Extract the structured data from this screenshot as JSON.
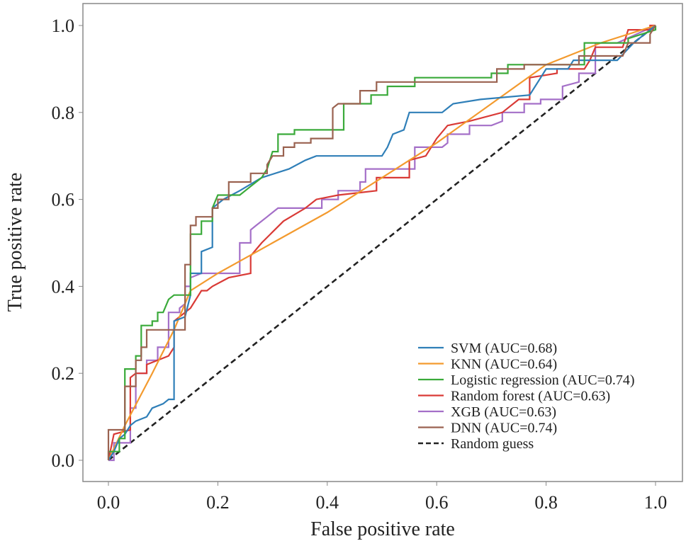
{
  "chart_data": {
    "type": "line",
    "title": "",
    "xlabel": "False positive rate",
    "ylabel": "True positive rate",
    "xlim": [
      0,
      1
    ],
    "ylim": [
      0,
      1
    ],
    "xticks": [
      "0.0",
      "0.2",
      "0.4",
      "0.6",
      "0.8",
      "1.0"
    ],
    "yticks": [
      "0.0",
      "0.2",
      "0.4",
      "0.6",
      "0.8",
      "1.0"
    ],
    "grid": false,
    "legend_position": "bottom-right",
    "series": [
      {
        "name": "SVM (AUC=0.68)",
        "color": "#2f7fb8",
        "dashed": false,
        "points": [
          [
            0,
            0
          ],
          [
            0.01,
            0.02
          ],
          [
            0.02,
            0.05
          ],
          [
            0.03,
            0.06
          ],
          [
            0.04,
            0.08
          ],
          [
            0.05,
            0.09
          ],
          [
            0.07,
            0.1
          ],
          [
            0.08,
            0.12
          ],
          [
            0.1,
            0.13
          ],
          [
            0.11,
            0.14
          ],
          [
            0.12,
            0.14
          ],
          [
            0.12,
            0.32
          ],
          [
            0.14,
            0.33
          ],
          [
            0.15,
            0.38
          ],
          [
            0.15,
            0.43
          ],
          [
            0.17,
            0.43
          ],
          [
            0.17,
            0.48
          ],
          [
            0.19,
            0.49
          ],
          [
            0.19,
            0.58
          ],
          [
            0.21,
            0.6
          ],
          [
            0.24,
            0.62
          ],
          [
            0.28,
            0.65
          ],
          [
            0.33,
            0.67
          ],
          [
            0.36,
            0.69
          ],
          [
            0.38,
            0.7
          ],
          [
            0.5,
            0.7
          ],
          [
            0.51,
            0.72
          ],
          [
            0.52,
            0.75
          ],
          [
            0.54,
            0.76
          ],
          [
            0.55,
            0.8
          ],
          [
            0.61,
            0.8
          ],
          [
            0.63,
            0.82
          ],
          [
            0.68,
            0.83
          ],
          [
            0.77,
            0.84
          ],
          [
            0.79,
            0.88
          ],
          [
            0.8,
            0.9
          ],
          [
            0.84,
            0.9
          ],
          [
            0.85,
            0.92
          ],
          [
            0.93,
            0.92
          ],
          [
            0.96,
            0.96
          ],
          [
            1,
            1
          ]
        ]
      },
      {
        "name": "KNN (AUC=0.64)",
        "color": "#f39a2e",
        "dashed": false,
        "points": [
          [
            0,
            0
          ],
          [
            0.03,
            0.08
          ],
          [
            0.08,
            0.2
          ],
          [
            0.12,
            0.3
          ],
          [
            0.15,
            0.39
          ],
          [
            0.2,
            0.43
          ],
          [
            0.3,
            0.5
          ],
          [
            0.4,
            0.57
          ],
          [
            0.5,
            0.65
          ],
          [
            0.6,
            0.73
          ],
          [
            0.7,
            0.82
          ],
          [
            0.8,
            0.91
          ],
          [
            0.9,
            0.96
          ],
          [
            1,
            1
          ]
        ]
      },
      {
        "name": "Logistic regression (AUC=0.74)",
        "color": "#3aaa3a",
        "dashed": false,
        "points": [
          [
            0,
            0
          ],
          [
            0,
            0.02
          ],
          [
            0.02,
            0.02
          ],
          [
            0.02,
            0.05
          ],
          [
            0.03,
            0.05
          ],
          [
            0.03,
            0.21
          ],
          [
            0.05,
            0.21
          ],
          [
            0.05,
            0.24
          ],
          [
            0.06,
            0.24
          ],
          [
            0.06,
            0.31
          ],
          [
            0.08,
            0.31
          ],
          [
            0.08,
            0.32
          ],
          [
            0.09,
            0.32
          ],
          [
            0.09,
            0.34
          ],
          [
            0.1,
            0.34
          ],
          [
            0.11,
            0.37
          ],
          [
            0.12,
            0.38
          ],
          [
            0.15,
            0.38
          ],
          [
            0.15,
            0.52
          ],
          [
            0.17,
            0.52
          ],
          [
            0.17,
            0.55
          ],
          [
            0.19,
            0.55
          ],
          [
            0.19,
            0.58
          ],
          [
            0.2,
            0.61
          ],
          [
            0.24,
            0.61
          ],
          [
            0.26,
            0.63
          ],
          [
            0.28,
            0.65
          ],
          [
            0.29,
            0.67
          ],
          [
            0.3,
            0.71
          ],
          [
            0.31,
            0.71
          ],
          [
            0.31,
            0.75
          ],
          [
            0.34,
            0.75
          ],
          [
            0.34,
            0.76
          ],
          [
            0.43,
            0.76
          ],
          [
            0.43,
            0.82
          ],
          [
            0.48,
            0.82
          ],
          [
            0.48,
            0.84
          ],
          [
            0.51,
            0.84
          ],
          [
            0.51,
            0.86
          ],
          [
            0.56,
            0.86
          ],
          [
            0.56,
            0.88
          ],
          [
            0.7,
            0.88
          ],
          [
            0.7,
            0.89
          ],
          [
            0.73,
            0.89
          ],
          [
            0.73,
            0.91
          ],
          [
            0.87,
            0.91
          ],
          [
            0.87,
            0.96
          ],
          [
            0.95,
            0.96
          ],
          [
            0.95,
            0.97
          ],
          [
            1,
            0.99
          ],
          [
            1,
            1
          ]
        ]
      },
      {
        "name": "Random forest (AUC=0.63)",
        "color": "#d93a36",
        "dashed": false,
        "points": [
          [
            0,
            0
          ],
          [
            0.01,
            0.06
          ],
          [
            0.04,
            0.07
          ],
          [
            0.04,
            0.19
          ],
          [
            0.05,
            0.2
          ],
          [
            0.07,
            0.2
          ],
          [
            0.07,
            0.22
          ],
          [
            0.11,
            0.24
          ],
          [
            0.12,
            0.26
          ],
          [
            0.12,
            0.32
          ],
          [
            0.13,
            0.33
          ],
          [
            0.15,
            0.35
          ],
          [
            0.17,
            0.39
          ],
          [
            0.18,
            0.39
          ],
          [
            0.19,
            0.4
          ],
          [
            0.22,
            0.42
          ],
          [
            0.26,
            0.43
          ],
          [
            0.26,
            0.47
          ],
          [
            0.28,
            0.5
          ],
          [
            0.32,
            0.55
          ],
          [
            0.36,
            0.58
          ],
          [
            0.38,
            0.6
          ],
          [
            0.42,
            0.61
          ],
          [
            0.49,
            0.62
          ],
          [
            0.49,
            0.65
          ],
          [
            0.55,
            0.65
          ],
          [
            0.55,
            0.69
          ],
          [
            0.58,
            0.7
          ],
          [
            0.6,
            0.74
          ],
          [
            0.62,
            0.77
          ],
          [
            0.66,
            0.78
          ],
          [
            0.72,
            0.8
          ],
          [
            0.75,
            0.83
          ],
          [
            0.77,
            0.83
          ],
          [
            0.77,
            0.88
          ],
          [
            0.82,
            0.89
          ],
          [
            0.82,
            0.9
          ],
          [
            0.87,
            0.9
          ],
          [
            0.88,
            0.92
          ],
          [
            0.89,
            0.95
          ],
          [
            0.94,
            0.95
          ],
          [
            0.95,
            0.99
          ],
          [
            0.99,
            0.99
          ],
          [
            0.99,
            1
          ],
          [
            1,
            1
          ]
        ]
      },
      {
        "name": "XGB (AUC=0.63)",
        "color": "#a46fc8",
        "dashed": false,
        "points": [
          [
            0,
            0
          ],
          [
            0.01,
            0
          ],
          [
            0.01,
            0.04
          ],
          [
            0.04,
            0.04
          ],
          [
            0.04,
            0.12
          ],
          [
            0.05,
            0.12
          ],
          [
            0.05,
            0.2
          ],
          [
            0.07,
            0.2
          ],
          [
            0.07,
            0.23
          ],
          [
            0.09,
            0.23
          ],
          [
            0.09,
            0.26
          ],
          [
            0.11,
            0.26
          ],
          [
            0.11,
            0.34
          ],
          [
            0.13,
            0.34
          ],
          [
            0.13,
            0.35
          ],
          [
            0.14,
            0.36
          ],
          [
            0.14,
            0.4
          ],
          [
            0.15,
            0.4
          ],
          [
            0.15,
            0.42
          ],
          [
            0.17,
            0.43
          ],
          [
            0.24,
            0.43
          ],
          [
            0.24,
            0.5
          ],
          [
            0.26,
            0.5
          ],
          [
            0.26,
            0.53
          ],
          [
            0.27,
            0.54
          ],
          [
            0.28,
            0.55
          ],
          [
            0.29,
            0.56
          ],
          [
            0.3,
            0.57
          ],
          [
            0.31,
            0.58
          ],
          [
            0.39,
            0.58
          ],
          [
            0.39,
            0.6
          ],
          [
            0.42,
            0.6
          ],
          [
            0.42,
            0.62
          ],
          [
            0.46,
            0.62
          ],
          [
            0.46,
            0.64
          ],
          [
            0.47,
            0.64
          ],
          [
            0.47,
            0.67
          ],
          [
            0.56,
            0.67
          ],
          [
            0.56,
            0.72
          ],
          [
            0.61,
            0.72
          ],
          [
            0.62,
            0.73
          ],
          [
            0.62,
            0.75
          ],
          [
            0.66,
            0.75
          ],
          [
            0.66,
            0.77
          ],
          [
            0.7,
            0.77
          ],
          [
            0.72,
            0.78
          ],
          [
            0.72,
            0.8
          ],
          [
            0.76,
            0.8
          ],
          [
            0.76,
            0.82
          ],
          [
            0.79,
            0.82
          ],
          [
            0.79,
            0.83
          ],
          [
            0.83,
            0.83
          ],
          [
            0.83,
            0.86
          ],
          [
            0.86,
            0.87
          ],
          [
            0.86,
            0.89
          ],
          [
            0.89,
            0.89
          ],
          [
            0.89,
            0.96
          ],
          [
            0.93,
            0.96
          ],
          [
            1,
            1
          ]
        ]
      },
      {
        "name": "DNN (AUC=0.74)",
        "color": "#9a6250",
        "dashed": false,
        "points": [
          [
            0,
            0
          ],
          [
            0,
            0.07
          ],
          [
            0.03,
            0.07
          ],
          [
            0.03,
            0.17
          ],
          [
            0.05,
            0.17
          ],
          [
            0.05,
            0.23
          ],
          [
            0.06,
            0.23
          ],
          [
            0.06,
            0.26
          ],
          [
            0.07,
            0.26
          ],
          [
            0.07,
            0.3
          ],
          [
            0.14,
            0.3
          ],
          [
            0.14,
            0.45
          ],
          [
            0.15,
            0.45
          ],
          [
            0.15,
            0.54
          ],
          [
            0.16,
            0.54
          ],
          [
            0.16,
            0.56
          ],
          [
            0.19,
            0.56
          ],
          [
            0.19,
            0.58
          ],
          [
            0.2,
            0.58
          ],
          [
            0.2,
            0.6
          ],
          [
            0.22,
            0.6
          ],
          [
            0.22,
            0.64
          ],
          [
            0.26,
            0.64
          ],
          [
            0.26,
            0.66
          ],
          [
            0.29,
            0.66
          ],
          [
            0.29,
            0.68
          ],
          [
            0.3,
            0.7
          ],
          [
            0.32,
            0.7
          ],
          [
            0.32,
            0.72
          ],
          [
            0.34,
            0.72
          ],
          [
            0.34,
            0.73
          ],
          [
            0.37,
            0.73
          ],
          [
            0.37,
            0.74
          ],
          [
            0.41,
            0.74
          ],
          [
            0.41,
            0.81
          ],
          [
            0.42,
            0.82
          ],
          [
            0.46,
            0.82
          ],
          [
            0.46,
            0.85
          ],
          [
            0.49,
            0.85
          ],
          [
            0.49,
            0.87
          ],
          [
            0.71,
            0.87
          ],
          [
            0.71,
            0.9
          ],
          [
            0.76,
            0.9
          ],
          [
            0.76,
            0.91
          ],
          [
            0.86,
            0.91
          ],
          [
            0.86,
            0.93
          ],
          [
            0.94,
            0.93
          ],
          [
            0.95,
            0.96
          ],
          [
            0.99,
            0.96
          ],
          [
            0.99,
            0.98
          ],
          [
            1,
            1
          ]
        ]
      },
      {
        "name": "Random guess",
        "color": "#222222",
        "dashed": true,
        "points": [
          [
            0,
            0
          ],
          [
            1,
            1
          ]
        ]
      }
    ]
  }
}
